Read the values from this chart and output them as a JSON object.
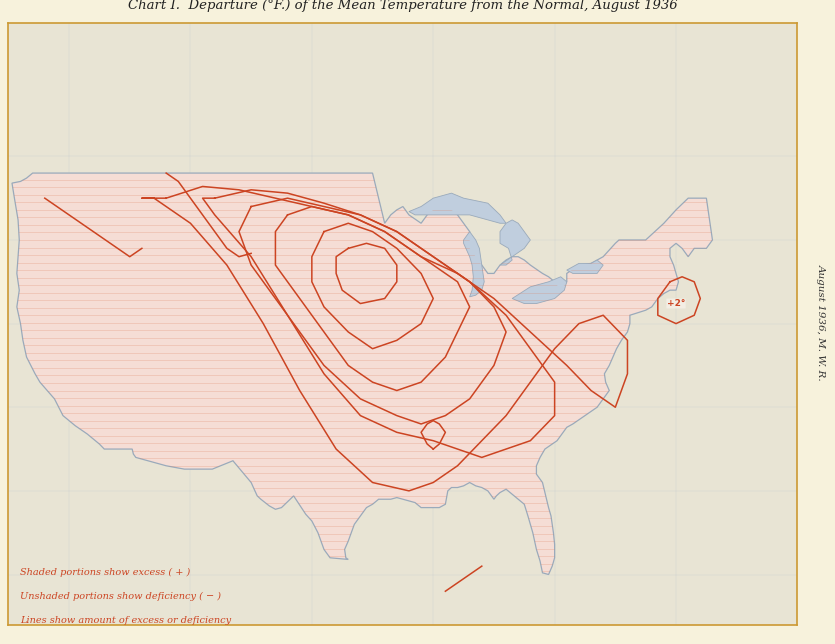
{
  "title": "Chart I.  Departure (°F.) of the Mean Temperature from the Normal, August 1936",
  "title_fontsize": 9.5,
  "background_color": "#f7f2dc",
  "ocean_color": "#dce8f0",
  "land_outside_color": "#e8e4d4",
  "us_fill_color": "#f5ddd5",
  "lakes_color": "#c0cede",
  "border_color": "#9aaabb",
  "contour_color": "#cc4422",
  "hatch_color": "#dd7755",
  "hatch_alpha": 0.28,
  "legend_lines": [
    "Shaded portions show excess ( + )",
    "Unshaded portions show deficiency ( − )",
    "Lines show amount of excess or deficiency"
  ],
  "side_label": "August 1936, M. W. R.",
  "figsize": [
    8.35,
    6.44
  ],
  "dpi": 100,
  "us_border_lw": 0.9,
  "contour_lw": 1.1
}
